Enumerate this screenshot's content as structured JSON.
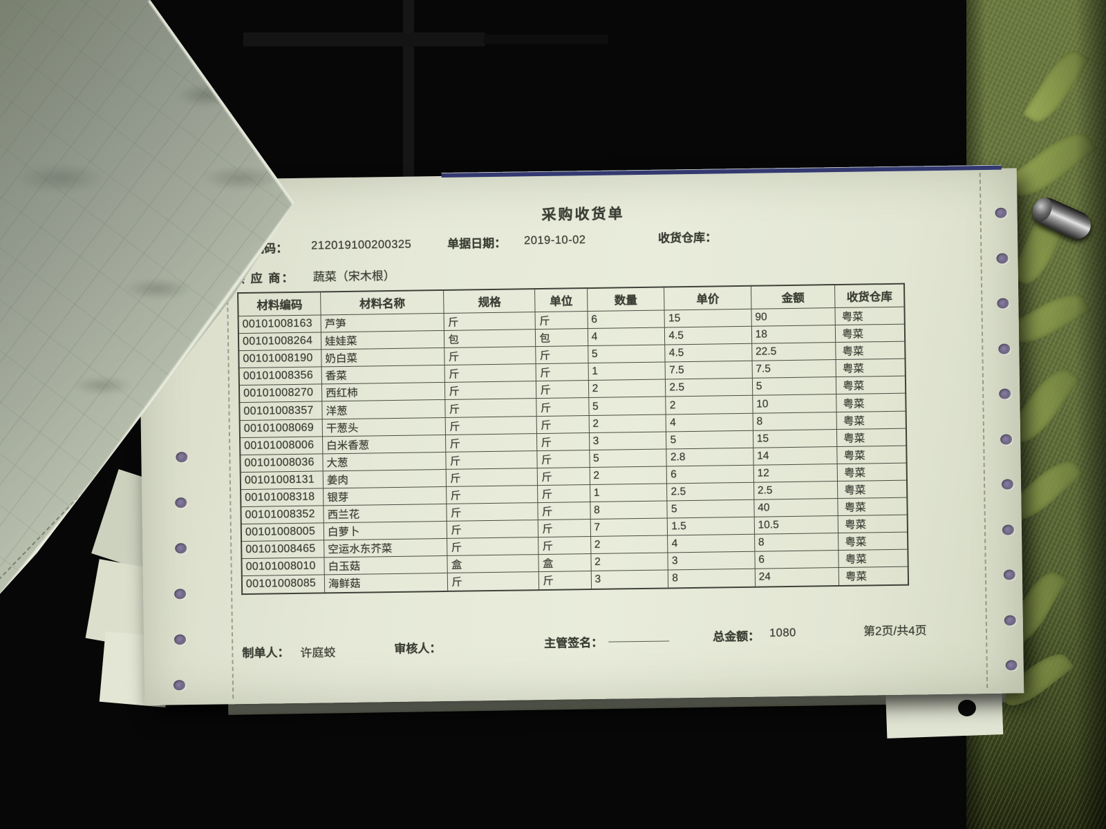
{
  "document": {
    "title": "采购收货单",
    "meta": {
      "code_label": "编码：",
      "code_value": "212019100200325",
      "date_label": "单据日期：",
      "date_value": "2019-10-02",
      "warehouse_label": "收货仓库：",
      "supplier_label": "供 应 商：",
      "supplier_value": "蔬菜（宋木根）"
    },
    "table": {
      "headers": [
        "材料编码",
        "材料名称",
        "规格",
        "单位",
        "数量",
        "单价",
        "金额",
        "收货仓库"
      ],
      "rows": [
        [
          "00101008163",
          "芦笋",
          "斤",
          "斤",
          "6",
          "15",
          "90",
          "粤菜"
        ],
        [
          "00101008264",
          "娃娃菜",
          "包",
          "包",
          "4",
          "4.5",
          "18",
          "粤菜"
        ],
        [
          "00101008190",
          "奶白菜",
          "斤",
          "斤",
          "5",
          "4.5",
          "22.5",
          "粤菜"
        ],
        [
          "00101008356",
          "香菜",
          "斤",
          "斤",
          "1",
          "7.5",
          "7.5",
          "粤菜"
        ],
        [
          "00101008270",
          "西红柿",
          "斤",
          "斤",
          "2",
          "2.5",
          "5",
          "粤菜"
        ],
        [
          "00101008357",
          "洋葱",
          "斤",
          "斤",
          "5",
          "2",
          "10",
          "粤菜"
        ],
        [
          "00101008069",
          "干葱头",
          "斤",
          "斤",
          "2",
          "4",
          "8",
          "粤菜"
        ],
        [
          "00101008006",
          "白米香葱",
          "斤",
          "斤",
          "3",
          "5",
          "15",
          "粤菜"
        ],
        [
          "00101008036",
          "大葱",
          "斤",
          "斤",
          "5",
          "2.8",
          "14",
          "粤菜"
        ],
        [
          "00101008131",
          "姜肉",
          "斤",
          "斤",
          "2",
          "6",
          "12",
          "粤菜"
        ],
        [
          "00101008318",
          "银芽",
          "斤",
          "斤",
          "1",
          "2.5",
          "2.5",
          "粤菜"
        ],
        [
          "00101008352",
          "西兰花",
          "斤",
          "斤",
          "8",
          "5",
          "40",
          "粤菜"
        ],
        [
          "00101008005",
          "白萝卜",
          "斤",
          "斤",
          "7",
          "1.5",
          "10.5",
          "粤菜"
        ],
        [
          "00101008465",
          "空运水东芥菜",
          "斤",
          "斤",
          "2",
          "4",
          "8",
          "粤菜"
        ],
        [
          "00101008010",
          "白玉菇",
          "盒",
          "盒",
          "2",
          "3",
          "6",
          "粤菜"
        ],
        [
          "00101008085",
          "海鲜菇",
          "斤",
          "斤",
          "3",
          "8",
          "24",
          "粤菜"
        ]
      ]
    },
    "footer": {
      "preparer_label": "制单人：",
      "preparer_value": "许庭蛟",
      "reviewer_label": "审核人：",
      "supervisor_label": "主管签名：",
      "total_label": "总金额：",
      "total_value": "1080",
      "page_info": "第2页/共4页"
    }
  }
}
